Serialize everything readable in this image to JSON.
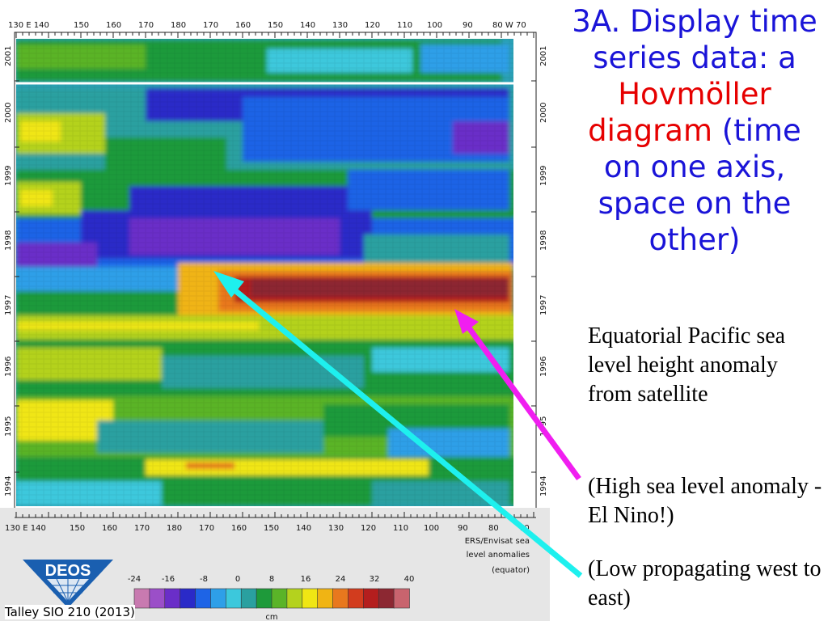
{
  "title": {
    "part1": "3A. Display time series data: a",
    "highlight": "Hovmöller diagram",
    "part2": "(time on one axis, space on the other)"
  },
  "notes": {
    "description": "Equatorial Pacific sea level height anomaly from satellite",
    "high_note": "(High sea level anomaly - El Nino!)",
    "low_note": "(Low propagating west to east)"
  },
  "credit": "Talley SIO 210 (2013)",
  "logo_text": "DEOS",
  "plot": {
    "top_axis_labels": [
      "130 E 140",
      "150",
      "160",
      "170",
      "180",
      "170",
      "160",
      "150",
      "140",
      "130",
      "120",
      "110",
      "100",
      "90",
      "80 W 70"
    ],
    "bottom_axis_labels": [
      "130 E 140",
      "150",
      "160",
      "170",
      "180",
      "170",
      "160",
      "150",
      "140",
      "130",
      "120",
      "110",
      "100",
      "90",
      "80",
      "70"
    ],
    "years": [
      "1994",
      "1995",
      "1996",
      "1997",
      "1998",
      "1999",
      "2000",
      "2001"
    ],
    "caption_lines": [
      "ERS/Envisat sea",
      "level anomalies",
      "(equator)"
    ],
    "colorbar_ticks": [
      "-24",
      "-16",
      "-8",
      "0",
      "8",
      "16",
      "24",
      "32",
      "40"
    ],
    "colorbar_unit": "cm",
    "colorbar_colors": [
      "#c87ab0",
      "#9b4fc8",
      "#6a2ec8",
      "#2a2ac8",
      "#1e64e6",
      "#2e9fe8",
      "#3cc8dc",
      "#2aa0a0",
      "#1e9a3a",
      "#5ab428",
      "#b4d21e",
      "#f0e614",
      "#f0b414",
      "#e8781e",
      "#d23c1e",
      "#b41e1e",
      "#8c2832",
      "#c8646e"
    ]
  }
}
